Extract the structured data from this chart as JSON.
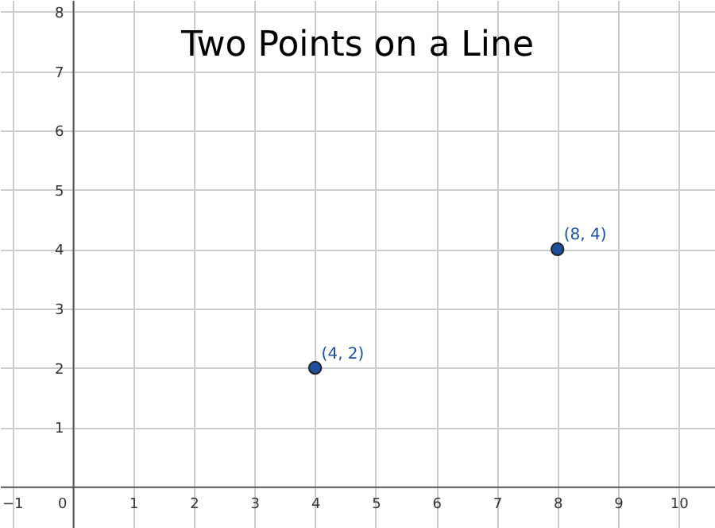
{
  "chart_data": {
    "type": "scatter",
    "title": "Two Points on a Line",
    "x": [
      4,
      8
    ],
    "series": [
      {
        "color": "#1c4f9c",
        "values": [
          2,
          4
        ]
      }
    ],
    "annotations": [
      {
        "text": "(4, 2)",
        "x": 4,
        "y": 2
      },
      {
        "text": "(8, 4)",
        "x": 8,
        "y": 4
      }
    ],
    "xlim": [
      -1.2,
      10.6
    ],
    "ylim": [
      -0.7,
      8.2
    ],
    "xticks": [
      -1,
      0,
      1,
      2,
      3,
      4,
      5,
      6,
      7,
      8,
      9,
      10
    ],
    "yticks": [
      1,
      2,
      3,
      4,
      5,
      6,
      7,
      8
    ],
    "grid": true,
    "marker": "circle"
  }
}
